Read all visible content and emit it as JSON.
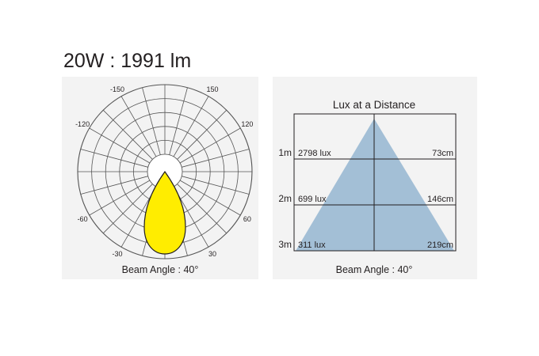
{
  "header": {
    "title": "20W : 1991 lm"
  },
  "polar_chart": {
    "angle_labels": [
      {
        "text": "-150",
        "angle": -150
      },
      {
        "text": "150",
        "angle": 150
      },
      {
        "text": "-120",
        "angle": -120
      },
      {
        "text": "120",
        "angle": 120
      },
      {
        "text": "-60",
        "angle": -60
      },
      {
        "text": "60",
        "angle": 60
      },
      {
        "text": "-30",
        "angle": -30
      },
      {
        "text": "30",
        "angle": 30
      }
    ],
    "beam_label": "Beam Angle : 40°",
    "beam_color": "#ffed00"
  },
  "lux_chart": {
    "title": "Lux at a Distance",
    "rows": [
      {
        "distance": "1m",
        "lux": "2798 lux",
        "diameter": "73cm"
      },
      {
        "distance": "2m",
        "lux": "699 lux",
        "diameter": "146cm"
      },
      {
        "distance": "3m",
        "lux": "311 lux",
        "diameter": "219cm"
      }
    ],
    "beam_label": "Beam Angle : 40°",
    "cone_color": "#a3bfd6"
  }
}
